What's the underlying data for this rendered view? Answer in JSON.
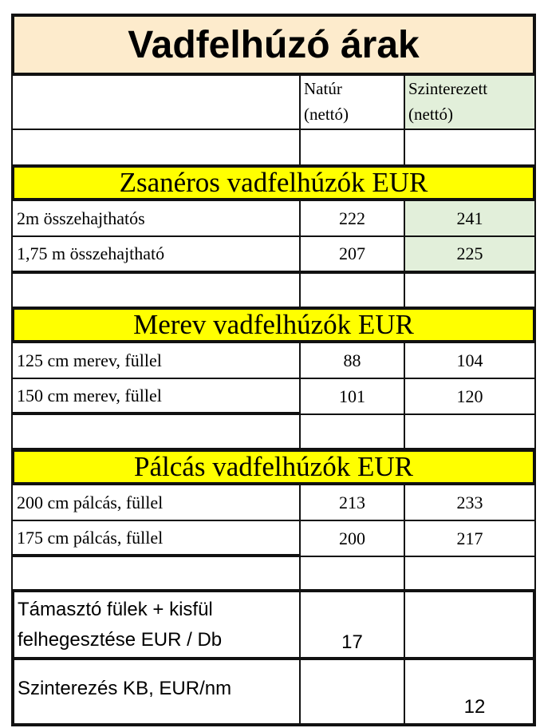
{
  "title": "Vadfelhúzó árak",
  "columns": {
    "natur": "Natúr\n(nettó)",
    "natur_l1": "Natúr",
    "natur_l2": "(nettó)",
    "szint_l1": "Szinterezett",
    "szint_l2": "(nettó)"
  },
  "sections": [
    {
      "title": "Zsanéros vadfelhúzók EUR",
      "rows": [
        {
          "name": "2m összehajthatós",
          "natur": "222",
          "szinterezett": "241"
        },
        {
          "name": "1,75 m összehajtható",
          "natur": "207",
          "szinterezett": "225"
        }
      ]
    },
    {
      "title": "Merev vadfelhúzók EUR",
      "rows": [
        {
          "name": "125 cm merev, füllel",
          "natur": "88",
          "szinterezett": "104"
        },
        {
          "name": "150 cm merev, füllel",
          "natur": "101",
          "szinterezett": "120"
        }
      ]
    },
    {
      "title": "Pálcás vadfelhúzók EUR",
      "rows": [
        {
          "name": "200 cm pálcás, füllel",
          "natur": "213",
          "szinterezett": "233"
        },
        {
          "name": "175 cm pálcás, füllel",
          "natur": "200",
          "szinterezett": "217"
        }
      ]
    }
  ],
  "extras": [
    {
      "line1": "Támasztó fülek + kisfül",
      "line2": "felhegesztése EUR / Db",
      "natur": "17",
      "szinterezett": ""
    },
    {
      "line1": "Szinterezés KB, EUR/nm",
      "line2": "",
      "natur": "",
      "szinterezett": "12"
    }
  ],
  "colors": {
    "title_bg": "#fdebcc",
    "section_bg": "#ffff00",
    "szinterezett_bg": "#e2efda"
  }
}
